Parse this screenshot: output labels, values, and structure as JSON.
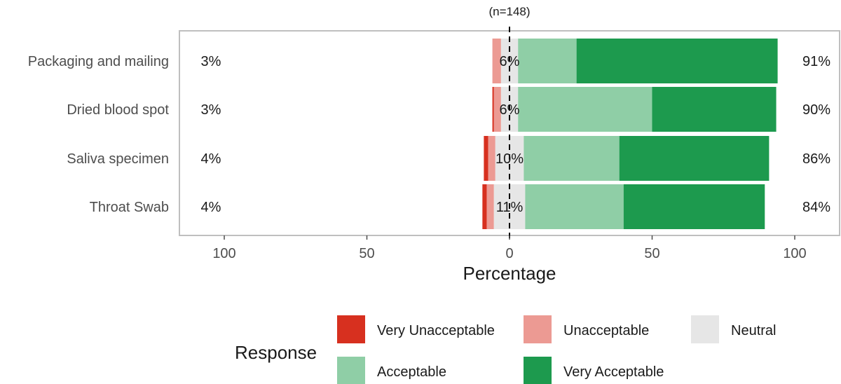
{
  "chart_data": {
    "type": "bar",
    "orientation": "horizontal",
    "stacked": "diverging",
    "subtitle": "(n=148)",
    "xlabel": "Percentage",
    "ylabel": "",
    "xlim": [
      -100,
      100
    ],
    "xticks": [
      -100,
      -50,
      0,
      50,
      100
    ],
    "xtick_labels": [
      "100",
      "50",
      "0",
      "50",
      "100"
    ],
    "grid": false,
    "categories": [
      "Packaging and mailing",
      "Dried blood spot",
      "Saliva specimen",
      "Throat Swab"
    ],
    "series": [
      {
        "name": "Very Unacceptable",
        "color": "#d7301f",
        "values": [
          0.0,
          0.5,
          1.5,
          1.5
        ]
      },
      {
        "name": "Unacceptable",
        "color": "#ec9a93",
        "values": [
          3.0,
          2.5,
          2.5,
          2.5
        ]
      },
      {
        "name": "Neutral",
        "color": "#e6e6e6",
        "values": [
          6,
          6,
          10,
          11
        ]
      },
      {
        "name": "Acceptable",
        "color": "#8fcea6",
        "values": [
          20.5,
          47,
          33.5,
          34.5
        ]
      },
      {
        "name": "Very Acceptable",
        "color": "#1d9a4e",
        "values": [
          70.5,
          43.5,
          52.5,
          49.5
        ]
      }
    ],
    "left_labels": [
      "3%",
      "3%",
      "4%",
      "4%"
    ],
    "center_labels": [
      "6%",
      "6%",
      "10%",
      "11%"
    ],
    "right_labels": [
      "91%",
      "90%",
      "86%",
      "84%"
    ],
    "legend": {
      "title": "Response",
      "placement": "bottom",
      "items": [
        "Very Unacceptable",
        "Unacceptable",
        "Neutral",
        "Acceptable",
        "Very Acceptable"
      ]
    },
    "zero_line": "dashed"
  }
}
